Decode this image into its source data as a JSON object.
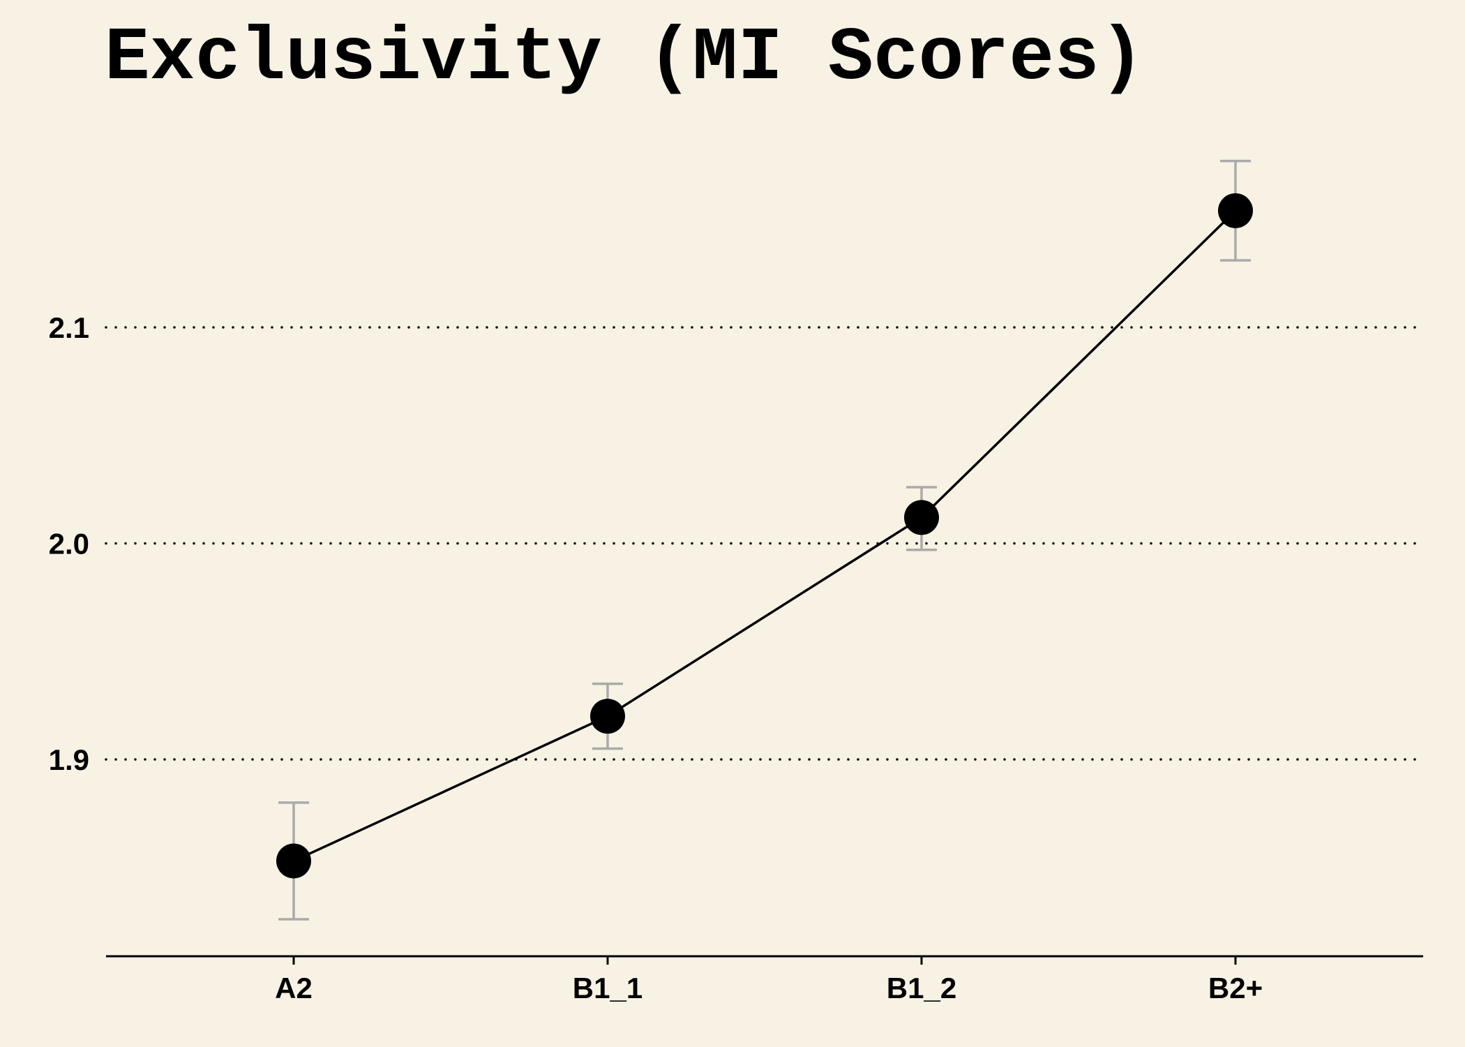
{
  "chart_data": {
    "type": "line",
    "title": "Exclusivity (MI Scores)",
    "xlabel": "",
    "ylabel": "",
    "categories": [
      "A2",
      "B1_1",
      "B1_2",
      "B2+"
    ],
    "values": [
      1.853,
      1.92,
      2.012,
      2.154
    ],
    "error_lower": [
      1.826,
      1.905,
      1.997,
      2.131
    ],
    "error_upper": [
      1.88,
      1.935,
      2.026,
      2.177
    ],
    "ylim": [
      1.81,
      2.2
    ],
    "yticks": [
      1.9,
      2.0,
      2.1
    ],
    "ytick_labels": [
      "1.9",
      "2.0",
      "2.1"
    ],
    "grid": "horizontal dotted",
    "legend": "none",
    "colors": {
      "background": "#f7f2e4",
      "line": "#000000",
      "marker": "#000000",
      "error_bar": "#aaaaaa",
      "grid": "#000000"
    }
  }
}
